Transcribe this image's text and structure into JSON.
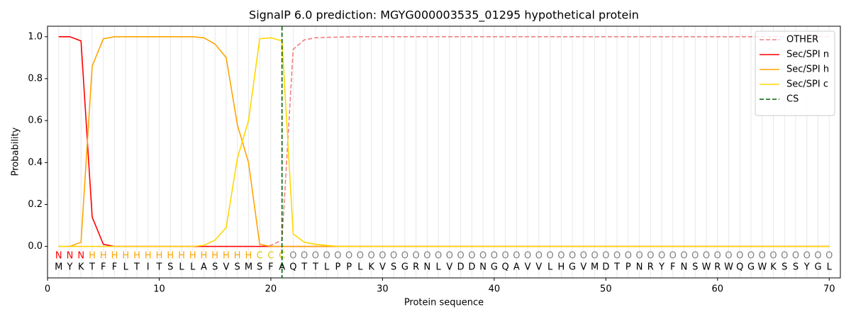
{
  "chart_data": {
    "type": "line",
    "title": "SignalP 6.0 prediction: MGYG000003535_01295 hypothetical protein",
    "xlabel": "Protein sequence",
    "ylabel": "Probability",
    "xlim": [
      0,
      71
    ],
    "ylim": [
      -0.15,
      1.05
    ],
    "xticks": [
      0,
      10,
      20,
      30,
      40,
      50,
      60,
      70
    ],
    "yticks": [
      {
        "value": 0,
        "label": "0.0"
      },
      0.2,
      0.4,
      0.6,
      0.8,
      {
        "value": 1,
        "label": "1.0"
      }
    ],
    "x": [
      1,
      2,
      3,
      4,
      5,
      6,
      7,
      8,
      9,
      10,
      11,
      12,
      13,
      14,
      15,
      16,
      17,
      18,
      19,
      20,
      21,
      22,
      23,
      24,
      25,
      26,
      27,
      28,
      29,
      30,
      31,
      32,
      33,
      34,
      35,
      36,
      37,
      38,
      39,
      40,
      41,
      42,
      43,
      44,
      45,
      46,
      47,
      48,
      49,
      50,
      51,
      52,
      53,
      54,
      55,
      56,
      57,
      58,
      59,
      60,
      61,
      62,
      63,
      64,
      65,
      66,
      67,
      68,
      69,
      70
    ],
    "sequence": [
      "M",
      "Y",
      "K",
      "T",
      "F",
      "F",
      "L",
      "T",
      "I",
      "T",
      "S",
      "L",
      "L",
      "A",
      "S",
      "V",
      "S",
      "M",
      "S",
      "F",
      "A",
      "Q",
      "T",
      "T",
      "L",
      "P",
      "P",
      "L",
      "K",
      "V",
      "S",
      "G",
      "R",
      "N",
      "L",
      "V",
      "D",
      "D",
      "N",
      "G",
      "Q",
      "A",
      "V",
      "V",
      "L",
      "H",
      "G",
      "V",
      "M",
      "D",
      "T",
      "P",
      "N",
      "R",
      "Y",
      "F",
      "N",
      "S",
      "W",
      "R",
      "W",
      "Q",
      "G",
      "W",
      "K",
      "S",
      "S",
      "Y",
      "G",
      "L"
    ],
    "annotations": [
      "N",
      "N",
      "N",
      "H",
      "H",
      "H",
      "H",
      "H",
      "H",
      "H",
      "H",
      "H",
      "H",
      "H",
      "H",
      "H",
      "H",
      "H",
      "C",
      "C",
      "C",
      "O",
      "O",
      "O",
      "O",
      "O",
      "O",
      "O",
      "O",
      "O",
      "O",
      "O",
      "O",
      "O",
      "O",
      "O",
      "O",
      "O",
      "O",
      "O",
      "O",
      "O",
      "O",
      "O",
      "O",
      "O",
      "O",
      "O",
      "O",
      "O",
      "O",
      "O",
      "O",
      "O",
      "O",
      "O",
      "O",
      "O",
      "O",
      "O",
      "O",
      "O",
      "O",
      "O",
      "O",
      "O",
      "O",
      "O",
      "O",
      "O"
    ],
    "annotation_colors": {
      "N": "#ff0000",
      "H": "#ffa500",
      "C": "#e6c800",
      "O": "#808080"
    },
    "series": [
      {
        "name": "OTHER",
        "color": "#f08080",
        "dashed": true,
        "values": [
          0,
          0,
          0,
          0,
          0,
          0,
          0,
          0,
          0,
          0,
          0,
          0,
          0,
          0,
          0,
          0,
          0,
          0,
          0,
          0.005,
          0.03,
          0.94,
          0.985,
          0.995,
          0.997,
          0.998,
          0.999,
          1,
          1,
          1,
          1,
          1,
          1,
          1,
          1,
          1,
          1,
          1,
          1,
          1,
          1,
          1,
          1,
          1,
          1,
          1,
          1,
          1,
          1,
          1,
          1,
          1,
          1,
          1,
          1,
          1,
          1,
          1,
          1,
          1,
          1,
          1,
          1,
          1,
          1,
          1,
          1,
          1,
          1,
          1
        ]
      },
      {
        "name": "Sec/SPI n",
        "color": "#ff0000",
        "values": [
          1,
          1,
          0.98,
          0.14,
          0.01,
          0,
          0,
          0,
          0,
          0,
          0,
          0,
          0,
          0,
          0,
          0,
          0,
          0,
          0,
          0,
          0,
          0,
          0,
          0,
          0,
          0,
          0,
          0,
          0,
          0,
          0,
          0,
          0,
          0,
          0,
          0,
          0,
          0,
          0,
          0,
          0,
          0,
          0,
          0,
          0,
          0,
          0,
          0,
          0,
          0,
          0,
          0,
          0,
          0,
          0,
          0,
          0,
          0,
          0,
          0,
          0,
          0,
          0,
          0,
          0,
          0,
          0,
          0,
          0,
          0
        ]
      },
      {
        "name": "Sec/SPI h",
        "color": "#ffa500",
        "values": [
          0,
          0,
          0.02,
          0.86,
          0.99,
          1,
          1,
          1,
          1,
          1,
          1,
          1,
          1,
          0.995,
          0.965,
          0.9,
          0.58,
          0.4,
          0.01,
          0,
          0,
          0,
          0,
          0,
          0,
          0,
          0,
          0,
          0,
          0,
          0,
          0,
          0,
          0,
          0,
          0,
          0,
          0,
          0,
          0,
          0,
          0,
          0,
          0,
          0,
          0,
          0,
          0,
          0,
          0,
          0,
          0,
          0,
          0,
          0,
          0,
          0,
          0,
          0,
          0,
          0,
          0,
          0,
          0,
          0,
          0,
          0,
          0,
          0,
          0
        ]
      },
      {
        "name": "Sec/SPI c",
        "color": "#ffd700",
        "values": [
          0,
          0,
          0,
          0,
          0,
          0,
          0,
          0,
          0,
          0,
          0,
          0,
          0,
          0.005,
          0.03,
          0.09,
          0.42,
          0.6,
          0.99,
          0.995,
          0.98,
          0.06,
          0.02,
          0.01,
          0.005,
          0,
          0,
          0,
          0,
          0,
          0,
          0,
          0,
          0,
          0,
          0,
          0,
          0,
          0,
          0,
          0,
          0,
          0,
          0,
          0,
          0,
          0,
          0,
          0,
          0,
          0,
          0,
          0,
          0,
          0,
          0,
          0,
          0,
          0,
          0,
          0,
          0,
          0,
          0,
          0,
          0,
          0,
          0,
          0,
          0
        ]
      }
    ],
    "cs": {
      "name": "CS",
      "x": 21,
      "color": "#006400"
    },
    "legend": "upper right"
  }
}
